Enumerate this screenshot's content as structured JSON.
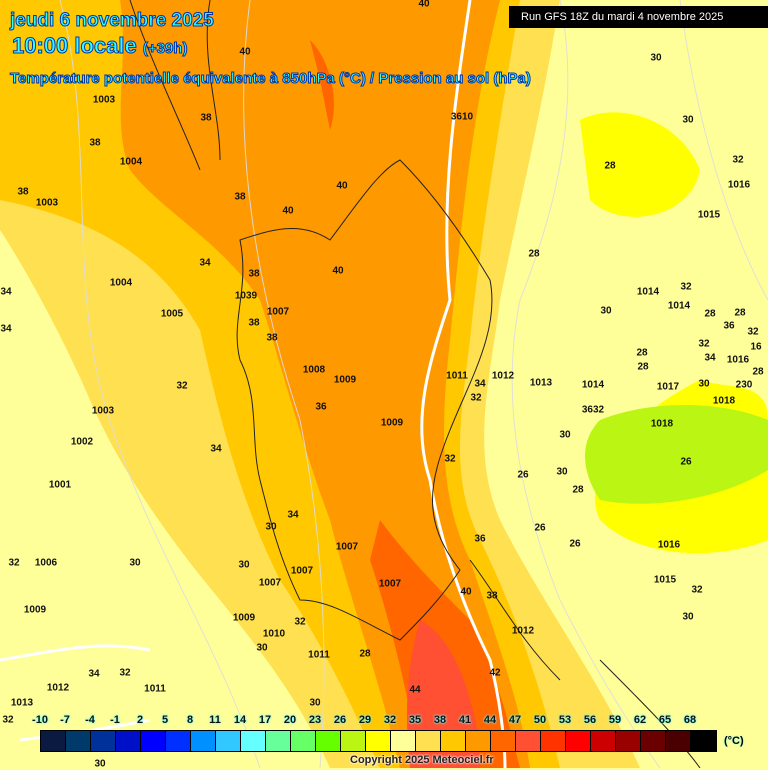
{
  "header": {
    "date": "jeudi 6 novembre 2025",
    "time": "10:00 locale",
    "lead": "(+39h)",
    "title": "Température potentielle équivalente à 850hPa (°C) / Pression au sol (hPa)",
    "run": "Run GFS 18Z du mardi 4 novembre 2025"
  },
  "colorbar": {
    "ticks": [
      "-10",
      "-7",
      "-4",
      "-1",
      "2",
      "5",
      "8",
      "11",
      "14",
      "17",
      "20",
      "23",
      "26",
      "29",
      "32",
      "35",
      "38",
      "41",
      "44",
      "47",
      "50",
      "53",
      "56",
      "59",
      "62",
      "65",
      "68"
    ],
    "colors": [
      "#0a1a40",
      "#003a6a",
      "#00319a",
      "#0010c8",
      "#0000ff",
      "#0030ff",
      "#0090ff",
      "#30c8ff",
      "#66ffff",
      "#66ff99",
      "#66ff66",
      "#66ff00",
      "#bbf514",
      "#ffff00",
      "#ffff99",
      "#ffe050",
      "#ffc800",
      "#ff9900",
      "#ff6600",
      "#ff5033",
      "#ff3300",
      "#ff0000",
      "#cc0000",
      "#990000",
      "#6a0000",
      "#4a0000",
      "#000000"
    ],
    "unit": "(°C)"
  },
  "copyright": "Copyright 2025 Meteociel.fr",
  "labels": [
    "40",
    "40",
    "1003",
    "30",
    "30",
    "38",
    "3610",
    "38",
    "1004",
    "28",
    "32",
    "38",
    "1003",
    "38",
    "40",
    "40",
    "1016",
    "1015",
    "28",
    "34",
    "38",
    "40",
    "1004",
    "34",
    "1039",
    "1007",
    "1005",
    "38",
    "38",
    "1014",
    "32",
    "1014",
    "30",
    "28",
    "28",
    "34",
    "36",
    "32",
    "32",
    "28",
    "16",
    "34",
    "28",
    "1016",
    "1008",
    "1009",
    "1011",
    "34",
    "1012",
    "32",
    "1013",
    "1014",
    "1017",
    "30",
    "230",
    "32",
    "1018",
    "36",
    "1003",
    "3632",
    "1009",
    "1002",
    "30",
    "1018",
    "34",
    "32",
    "30",
    "26",
    "26",
    "1001",
    "28",
    "34",
    "30",
    "26",
    "1007",
    "36",
    "26",
    "1016",
    "32",
    "1006",
    "30",
    "30",
    "1007",
    "1007",
    "1007",
    "40",
    "38",
    "1015",
    "32",
    "1009",
    "1009",
    "32",
    "1010",
    "30",
    "1012",
    "30",
    "1011",
    "28",
    "34",
    "32",
    "28",
    "1011",
    "42",
    "44",
    "1012",
    "30",
    "32",
    "1013",
    "30"
  ]
}
